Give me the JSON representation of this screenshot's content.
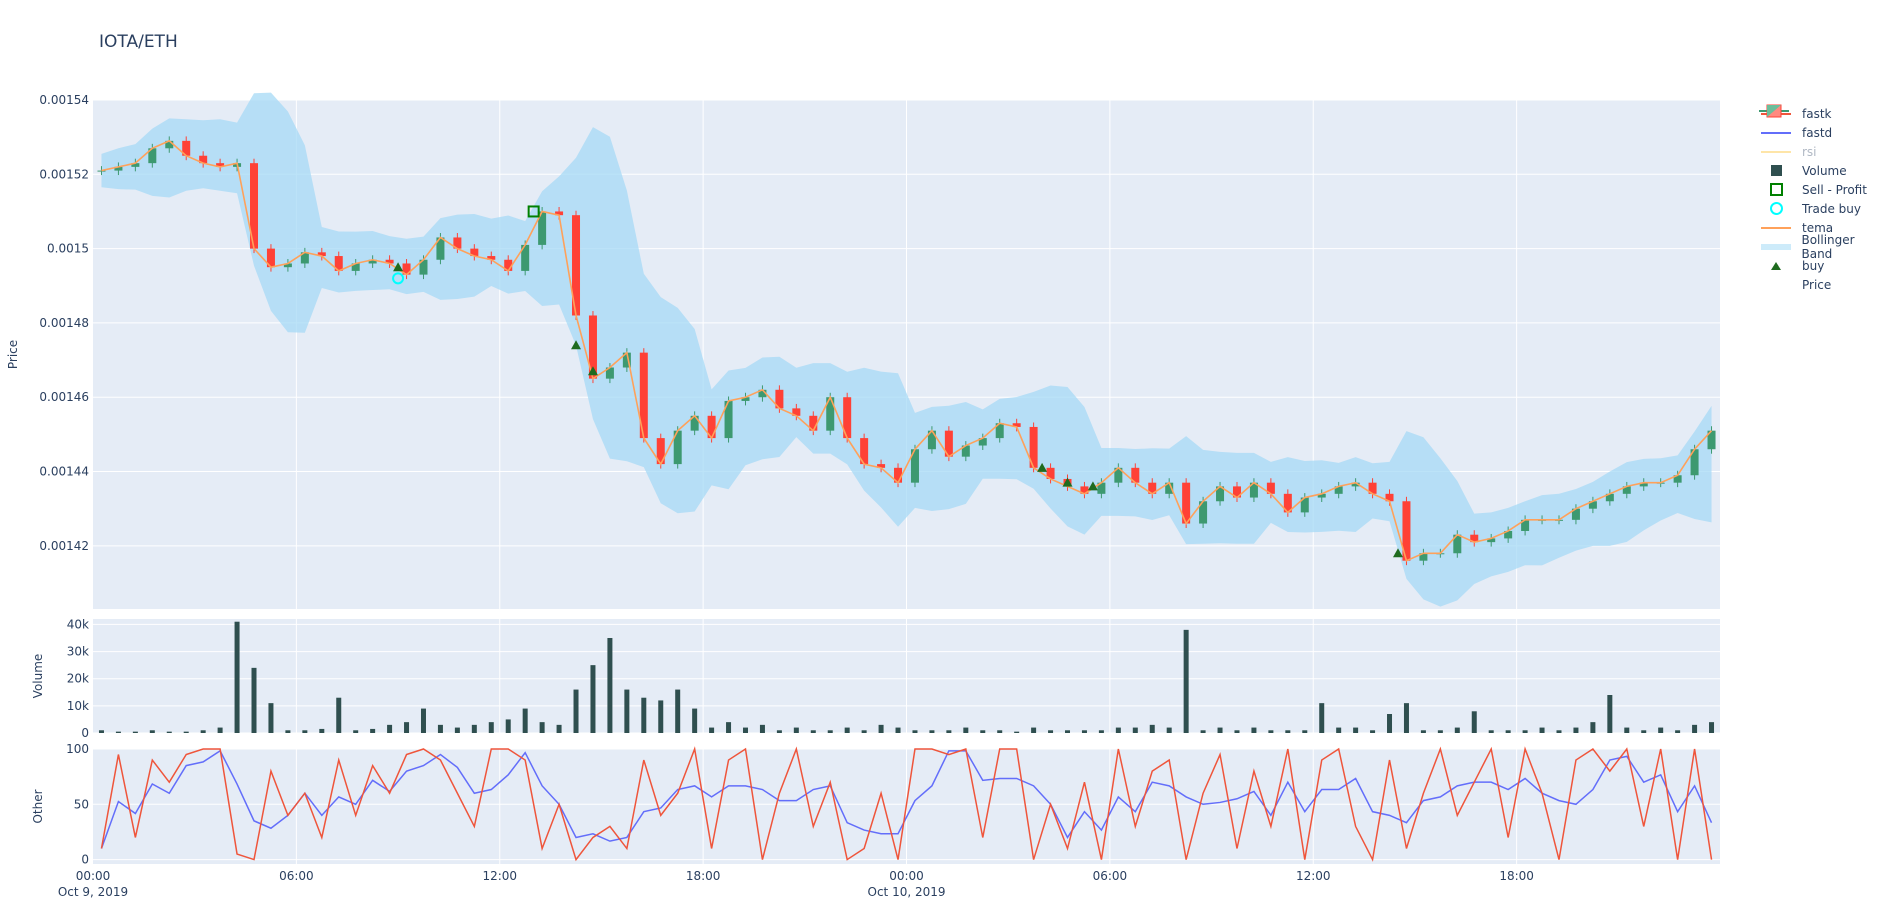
{
  "title": "IOTA/ETH",
  "colors": {
    "fastk": "#EF553B",
    "fastd": "#636EFA",
    "rsi": "#FECB52",
    "volume": "#2F4F4F",
    "sell_profit": "#008000",
    "trade_buy": "#00FFFF",
    "tema": "#FFA15A",
    "bollinger": "#A6D9F5",
    "buy": "#1F6B1F",
    "increasing": "#3D9970",
    "decreasing": "#FF4136",
    "plot_bg": "#E5ECF6"
  },
  "legend": [
    {
      "label": "fastk",
      "icon": "line"
    },
    {
      "label": "fastd",
      "icon": "line"
    },
    {
      "label": "rsi",
      "icon": "line",
      "hidden": true
    },
    {
      "label": "Volume",
      "icon": "square-filled"
    },
    {
      "label": "Sell - Profit",
      "icon": "square-open"
    },
    {
      "label": "Trade buy",
      "icon": "circle-open"
    },
    {
      "label": "tema",
      "icon": "line"
    },
    {
      "label": "Bollinger Band",
      "icon": "band"
    },
    {
      "label": "buy",
      "icon": "triangle-up"
    },
    {
      "label": "Price",
      "icon": "candlestick"
    }
  ],
  "chart_data": {
    "type": "candlestick",
    "interval_minutes": 30,
    "x_ticks": [
      {
        "label": "00:00",
        "sub": "Oct 9, 2019",
        "hour": 0
      },
      {
        "label": "06:00",
        "hour": 6
      },
      {
        "label": "12:00",
        "hour": 12
      },
      {
        "label": "18:00",
        "hour": 18
      },
      {
        "label": "00:00",
        "sub": "Oct 10, 2019",
        "hour": 24
      },
      {
        "label": "06:00",
        "hour": 30
      },
      {
        "label": "12:00",
        "hour": 36
      },
      {
        "label": "18:00",
        "hour": 42
      }
    ],
    "price": {
      "ylabel": "Price",
      "ylim": [
        0.001403,
        0.00154
      ],
      "y_ticks": [
        {
          "v": 0.00154,
          "label": "0.00154"
        },
        {
          "v": 0.00152,
          "label": "0.00152"
        },
        {
          "v": 0.0015,
          "label": "0.0015"
        },
        {
          "v": 0.00148,
          "label": "0.00148"
        },
        {
          "v": 0.00146,
          "label": "0.00146"
        },
        {
          "v": 0.00144,
          "label": "0.00144"
        },
        {
          "v": 0.00142,
          "label": "0.00142"
        }
      ],
      "close": [
        0.001521,
        0.001522,
        0.001523,
        0.001527,
        0.001529,
        0.001525,
        0.001523,
        0.001522,
        0.001523,
        0.0015,
        0.001495,
        0.001496,
        0.001499,
        0.001498,
        0.001494,
        0.001496,
        0.001497,
        0.001496,
        0.001493,
        0.001497,
        0.001503,
        0.0015,
        0.001498,
        0.001497,
        0.001494,
        0.001501,
        0.00151,
        0.001509,
        0.001482,
        0.001465,
        0.001468,
        0.001472,
        0.001449,
        0.001442,
        0.001451,
        0.001455,
        0.001449,
        0.001459,
        0.00146,
        0.001462,
        0.001457,
        0.001455,
        0.001451,
        0.00146,
        0.001449,
        0.001442,
        0.001441,
        0.001437,
        0.001446,
        0.001451,
        0.001444,
        0.001447,
        0.001449,
        0.001453,
        0.001452,
        0.001441,
        0.001438,
        0.001436,
        0.001434,
        0.001437,
        0.001441,
        0.001437,
        0.001434,
        0.001437,
        0.001426,
        0.001432,
        0.001436,
        0.001433,
        0.001437,
        0.001434,
        0.001429,
        0.001433,
        0.001434,
        0.001436,
        0.001437,
        0.001434,
        0.001432,
        0.001416,
        0.001418,
        0.001418,
        0.001423,
        0.001421,
        0.001422,
        0.001424,
        0.001427,
        0.001427,
        0.001427,
        0.00143,
        0.001432,
        0.001434,
        0.001436,
        0.001437,
        0.001437,
        0.001439,
        0.001446,
        0.001451
      ],
      "buy": [
        {
          "hour": 9,
          "v": 0.001495
        },
        {
          "hour": 14.25,
          "v": 0.001474
        },
        {
          "hour": 14.75,
          "v": 0.001467
        },
        {
          "hour": 28,
          "v": 0.001441
        },
        {
          "hour": 28.75,
          "v": 0.001437
        },
        {
          "hour": 29.5,
          "v": 0.001436
        },
        {
          "hour": 38.5,
          "v": 0.001418
        }
      ],
      "trade_buy": [
        {
          "hour": 9,
          "v": 0.001492
        }
      ],
      "sell_profit": [
        {
          "hour": 13,
          "v": 0.00151
        }
      ]
    },
    "volume": {
      "ylabel": "Volume",
      "ylim": [
        0,
        42000
      ],
      "y_ticks": [
        {
          "v": 0,
          "label": "0"
        },
        {
          "v": 10000,
          "label": "10k"
        },
        {
          "v": 20000,
          "label": "20k"
        },
        {
          "v": 30000,
          "label": "30k"
        },
        {
          "v": 40000,
          "label": "40k"
        }
      ],
      "values_k": [
        1,
        0.5,
        0.5,
        1,
        0.5,
        0.5,
        1,
        2,
        41,
        24,
        11,
        1,
        1,
        1.5,
        13,
        1,
        1.5,
        3,
        4,
        9,
        3,
        2,
        3,
        4,
        5,
        9,
        4,
        3,
        16,
        25,
        35,
        16,
        13,
        12,
        16,
        9,
        2,
        4,
        2,
        3,
        1,
        2,
        1,
        1,
        2,
        1,
        3,
        2,
        1,
        1,
        1,
        2,
        1,
        1,
        0.5,
        2,
        1,
        1,
        1,
        1,
        2,
        2,
        3,
        2,
        38,
        1,
        2,
        1,
        2,
        1,
        1,
        1,
        11,
        2,
        2,
        1,
        7,
        11,
        1,
        1,
        2,
        8,
        1,
        1,
        1,
        2,
        1,
        2,
        4,
        14,
        2,
        1,
        2,
        1,
        3,
        4
      ]
    },
    "other": {
      "ylabel": "Other",
      "ylim": [
        -4,
        100
      ],
      "y_ticks": [
        {
          "v": 0,
          "label": "0"
        },
        {
          "v": 50,
          "label": "50"
        },
        {
          "v": 100,
          "label": "100"
        }
      ],
      "fastk": [
        10,
        95,
        20,
        90,
        70,
        95,
        100,
        100,
        5,
        0,
        80,
        40,
        60,
        20,
        90,
        40,
        85,
        60,
        95,
        100,
        90,
        60,
        30,
        100,
        100,
        90,
        10,
        50,
        0,
        20,
        30,
        10,
        90,
        40,
        60,
        100,
        10,
        90,
        100,
        0,
        60,
        100,
        30,
        70,
        0,
        10,
        60,
        0,
        100,
        100,
        95,
        100,
        20,
        100,
        100,
        0,
        50,
        10,
        70,
        0,
        100,
        30,
        80,
        90,
        0,
        60,
        95,
        10,
        80,
        30,
        100,
        0,
        90,
        100,
        30,
        0,
        90,
        10,
        60,
        100,
        40,
        70,
        100,
        20,
        100,
        60,
        0,
        90,
        100,
        80,
        100,
        30,
        100,
        0,
        100,
        0
      ]
    }
  }
}
